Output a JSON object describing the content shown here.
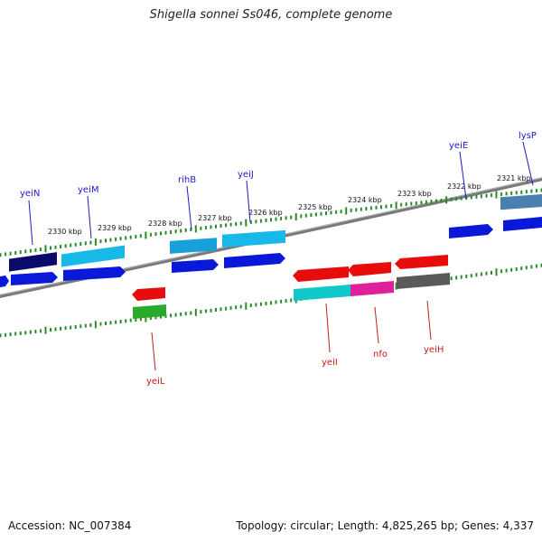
{
  "title": "Shigella sonnei Ss046, complete genome",
  "footer": {
    "accession": "Accession: NC_007384",
    "summary": "Topology: circular; Length: 4,825,265 bp; Genes: 4,337"
  },
  "ruler": {
    "labels": [
      "2321 kbp",
      "2322 kbp",
      "2323 kbp",
      "2324 kbp",
      "2325 kbp",
      "2326 kbp",
      "2327 kbp",
      "2328 kbp",
      "2329 kbp",
      "2330 kbp"
    ]
  },
  "gene_labels": {
    "forward": [
      "lysP",
      "yeiE",
      "yeiJ",
      "rihB",
      "yeiM",
      "yeiN"
    ],
    "reverse": [
      "yeiL",
      "yeiI",
      "nfo",
      "yeiH"
    ]
  },
  "colors": {
    "forward_label": "#1a1acc",
    "reverse_label": "#cc1a1a",
    "backbone": "#7a7a7a",
    "tick": "#2a8a2a",
    "blue": "#0a18d8",
    "navy": "#0a0a6a",
    "cyan": "#18b8e8",
    "steel": "#4a80b0",
    "red": "#e80c0c",
    "teal": "#10c8c8",
    "magenta": "#e0209a",
    "gray": "#5a5a5a",
    "green": "#2aaa2a"
  }
}
